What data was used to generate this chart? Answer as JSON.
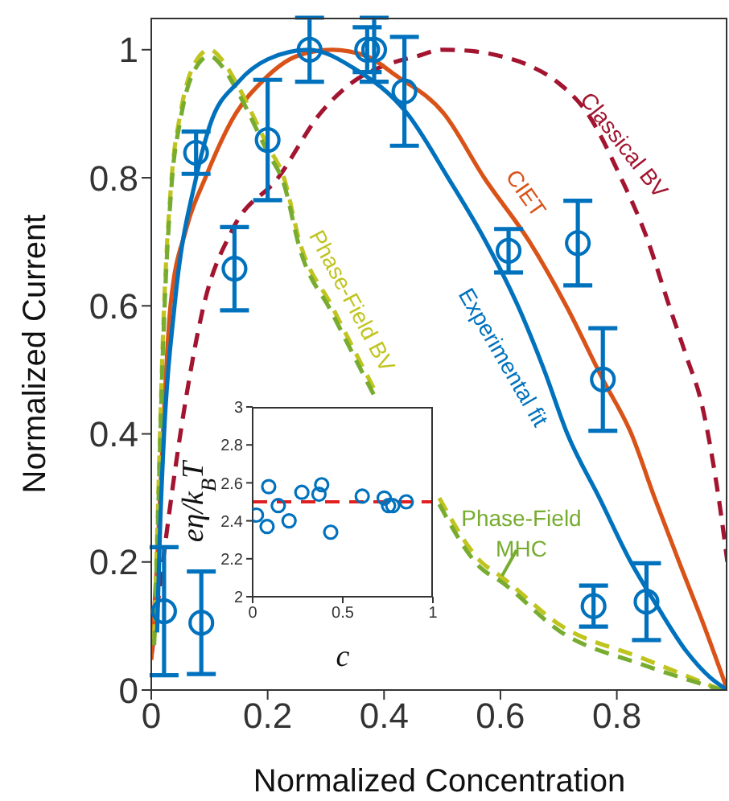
{
  "chart_data": [
    {
      "type": "line",
      "xlabel": "Normalized Concentration",
      "ylabel": "Normalized Current",
      "xlim": [
        0,
        0.99
      ],
      "ylim": [
        0,
        1.05
      ],
      "xticks": [
        0,
        0.2,
        0.4,
        0.6,
        0.8
      ],
      "yticks": [
        0,
        0.2,
        0.4,
        0.6,
        0.8,
        1
      ],
      "series": [
        {
          "name": "Classical BV",
          "color": "#a2142f",
          "line_style": "dashed",
          "x": [
            0,
            0.02,
            0.05,
            0.09,
            0.14,
            0.218,
            0.29,
            0.347,
            0.4,
            0.457,
            0.5,
            0.55,
            0.6,
            0.65,
            0.697,
            0.75,
            0.807,
            0.85,
            0.89,
            0.92,
            0.945,
            0.975,
            0.99
          ],
          "values": [
            0.05,
            0.2,
            0.4,
            0.6,
            0.72,
            0.8,
            0.9,
            0.95,
            0.975,
            0.99,
            1.0,
            0.998,
            0.99,
            0.975,
            0.95,
            0.9,
            0.8,
            0.71,
            0.6,
            0.52,
            0.45,
            0.3,
            0.2
          ]
        },
        {
          "name": "CIET",
          "color": "#d95319",
          "line_style": "solid",
          "x": [
            0,
            0.01,
            0.02,
            0.033,
            0.06,
            0.093,
            0.145,
            0.19,
            0.25,
            0.31,
            0.37,
            0.42,
            0.503,
            0.572,
            0.65,
            0.713,
            0.776,
            0.825,
            0.865,
            0.907,
            0.95,
            0.99
          ],
          "values": [
            0.047,
            0.2,
            0.4,
            0.6,
            0.72,
            0.8,
            0.9,
            0.95,
            0.99,
            1.0,
            0.99,
            0.96,
            0.9,
            0.8,
            0.7,
            0.6,
            0.485,
            0.4,
            0.3,
            0.2,
            0.1,
            0
          ]
        },
        {
          "name": "Phase-Field BV",
          "color": "#c0c41e",
          "line_style": "dashed",
          "x": [
            0.005,
            0.012,
            0.02,
            0.035,
            0.05,
            0.07,
            0.1,
            0.125,
            0.145,
            0.2,
            0.228,
            0.255,
            0.31,
            0.383,
            0.43,
            0.495,
            0.567,
            0.6,
            0.705,
            0.843,
            0.98
          ],
          "values": [
            0.08,
            0.3,
            0.55,
            0.8,
            0.9,
            0.97,
            1.0,
            0.98,
            0.95,
            0.85,
            0.8,
            0.7,
            0.6,
            0.47,
            null,
            0.3,
            0.2,
            0.178,
            0.1,
            0.05,
            0
          ]
        },
        {
          "name": "Phase-Field MHC",
          "color": "#77ac30",
          "line_style": "dashed",
          "x": [
            0.005,
            0.012,
            0.02,
            0.035,
            0.05,
            0.07,
            0.1,
            0.125,
            0.145,
            0.2,
            0.228,
            0.255,
            0.31,
            0.383,
            0.43,
            0.495,
            0.567,
            0.6,
            0.705,
            0.843,
            0.98
          ],
          "values": [
            0.07,
            0.28,
            0.53,
            0.79,
            0.89,
            0.96,
            0.99,
            0.97,
            0.94,
            0.84,
            0.79,
            0.69,
            0.59,
            0.46,
            null,
            0.29,
            0.19,
            0.17,
            0.09,
            0.04,
            0
          ]
        },
        {
          "name": "Experimental fit",
          "color": "#0072bd",
          "line_style": "solid",
          "x": [
            0.01,
            0.015,
            0.022,
            0.04,
            0.077,
            0.1,
            0.15,
            0.2,
            0.27,
            0.35,
            0.44,
            0.51,
            0.575,
            0.63,
            0.675,
            0.715,
            0.77,
            0.824,
            0.87,
            0.92,
            0.96,
            0.99
          ],
          "values": [
            0.09,
            0.25,
            0.4,
            0.6,
            0.8,
            0.88,
            0.95,
            0.985,
            1.0,
            0.97,
            0.9,
            0.8,
            0.7,
            0.6,
            0.5,
            0.4,
            0.3,
            0.2,
            0.13,
            0.06,
            0.02,
            0
          ]
        },
        {
          "type": "scatter",
          "color": "#0072bd",
          "marker": "circle",
          "x": [
            0.022,
            0.086,
            0.077,
            0.143,
            0.2,
            0.272,
            0.371,
            0.383,
            0.435,
            0.614,
            0.733,
            0.776,
            0.76,
            0.851
          ],
          "values": [
            0.123,
            0.105,
            0.839,
            0.658,
            0.859,
            1.0,
            1.0,
            1.0,
            0.935,
            0.686,
            0.698,
            0.485,
            0.131,
            0.138
          ],
          "errors": [
            0.1,
            0.08,
            0.033,
            0.065,
            0.094,
            0.05,
            0.035,
            0.05,
            0.085,
            0.034,
            0.066,
            0.08,
            0.032,
            0.06
          ]
        }
      ]
    },
    {
      "type": "scatter",
      "xlabel": "c",
      "ylabel": "eη/k$_{B}$T",
      "xlim": [
        0,
        1
      ],
      "ylim": [
        2,
        3
      ],
      "xticks": [
        0,
        0.5,
        1
      ],
      "yticks": [
        2,
        2.2,
        2.4,
        2.6,
        2.8,
        3
      ],
      "marker": "circle",
      "series": [
        {
          "color": "#0072bd",
          "x": [
            0.021,
            0.089,
            0.08,
            0.142,
            0.202,
            0.273,
            0.368,
            0.383,
            0.433,
            0.608,
            0.73,
            0.754,
            0.777,
            0.852
          ],
          "values": [
            2.43,
            2.58,
            2.37,
            2.48,
            2.4,
            2.55,
            2.54,
            2.59,
            2.34,
            2.53,
            2.52,
            2.48,
            2.48,
            2.5
          ]
        }
      ],
      "ref_lines": [
        {
          "axis": "y",
          "value": 2.5,
          "color": "#e02020",
          "line_style": "dashed"
        }
      ]
    }
  ]
}
